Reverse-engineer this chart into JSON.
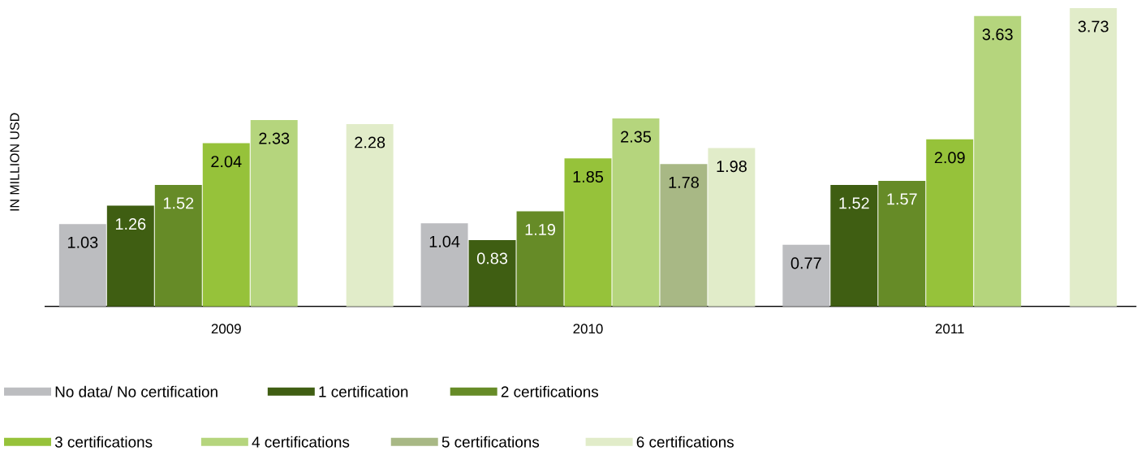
{
  "chart_data": {
    "type": "bar",
    "ylabel": "IN MILLION USD",
    "categories": [
      "2009",
      "2010",
      "2011"
    ],
    "ylim": [
      0,
      3.73
    ],
    "tick_labels": "x",
    "data_labels": true,
    "legend": "bottom",
    "series": [
      {
        "name": "No data/ No certification",
        "color": "#bcbdc0",
        "values": [
          1.03,
          1.04,
          0.77
        ]
      },
      {
        "name": "1 certification",
        "color": "#3f5e12",
        "values": [
          1.26,
          0.83,
          1.52
        ]
      },
      {
        "name": "2 certifications",
        "color": "#668b27",
        "values": [
          1.52,
          1.19,
          1.57
        ]
      },
      {
        "name": "3 certifications",
        "color": "#96c23a",
        "values": [
          2.04,
          1.85,
          2.09
        ]
      },
      {
        "name": "4 certifications",
        "color": "#b5d57d",
        "values": [
          2.33,
          2.35,
          3.63
        ]
      },
      {
        "name": "5 certifications",
        "color": "#a8b885",
        "values": [
          null,
          1.78,
          null
        ]
      },
      {
        "name": "6 certifications",
        "color": "#e1ecc9",
        "values": [
          2.28,
          1.98,
          3.73
        ]
      }
    ]
  }
}
